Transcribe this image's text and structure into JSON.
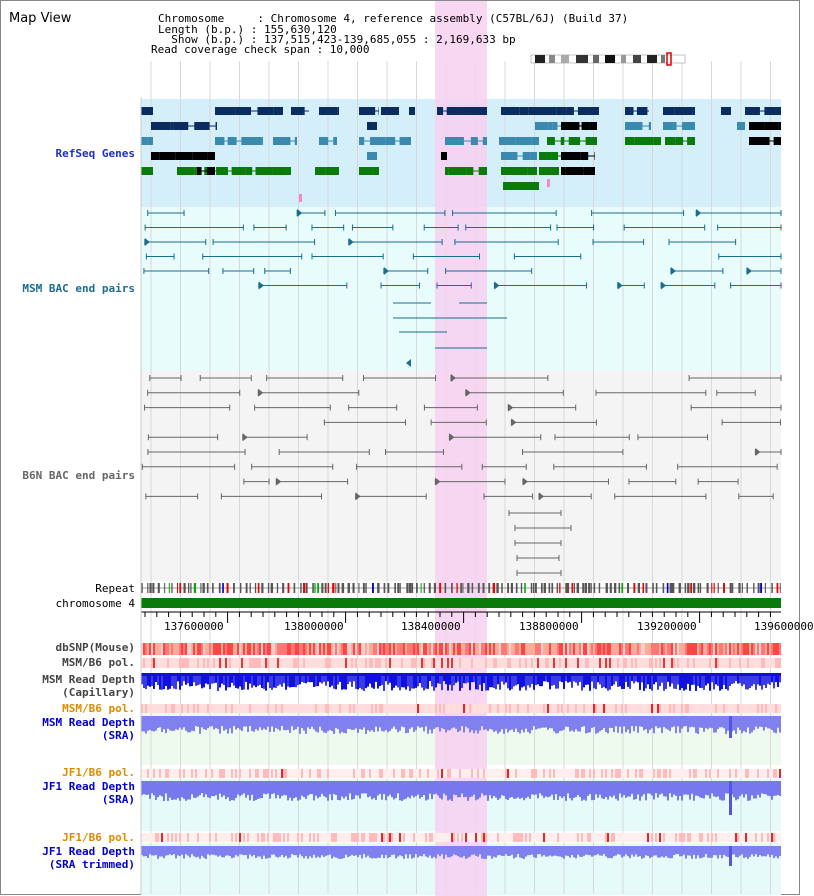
{
  "header": {
    "title": "Map View",
    "info_lines": [
      "Chromosome     : Chromosome 4, reference assembly (C57BL/6J) (Build 37)",
      "Length (b.p.) : 155,630,120",
      "  Show (b.p.) : 137,515,423-139,685,055 : 2,169,633 bp",
      "Read coverage check span : 10,000"
    ]
  },
  "tracks": {
    "refseq": "RefSeq Genes",
    "msm_bac": "MSM BAC end pairs",
    "b6n_bac": "B6N BAC end pairs",
    "repeat": "Repeat",
    "chromosome": "chromosome 4",
    "dbsnp": "dbSNP(Mouse)",
    "msm_b6_pol_1": "MSM/B6 pol.",
    "msm_depth_cap_1": "MSM Read Depth",
    "msm_depth_cap_2": "(Capillary)",
    "msm_b6_pol_2": "MSM/B6 pol.",
    "msm_depth_sra_1": "MSM Read Depth",
    "msm_depth_sra_2": "(SRA)",
    "jf1_b6_pol_1": "JF1/B6 pol.",
    "jf1_depth_sra_1": "JF1 Read Depth",
    "jf1_depth_sra_2": "(SRA)",
    "jf1_b6_pol_2": "JF1/B6 pol.",
    "jf1_depth_trim_1": "JF1 Read Depth",
    "jf1_depth_trim_2": "(SRA trimmed)"
  },
  "axis": {
    "ticks": [
      "137600000",
      "138000000",
      "138400000",
      "138800000",
      "139200000",
      "139600000"
    ]
  },
  "colors": {
    "highlight": "#f6d0f0",
    "refseq_bg": "#d4eefa",
    "msm_bg": "#e8fcfc",
    "b6n_bg": "#f4f4f4",
    "refseq_dark": "#0a2c5e",
    "refseq_mid": "#3a8ab0",
    "refseq_green": "#0a7a0a",
    "msm_line": "#1a6e8e",
    "b6n_line": "#666666",
    "chrom_green": "#0a7a0a",
    "snp_red": "#ee3333",
    "depth_blue": "#1414e6",
    "depth_light_blue": "#7777ee",
    "orange_label": "#e08a00",
    "blue_label": "#0000cc"
  }
}
